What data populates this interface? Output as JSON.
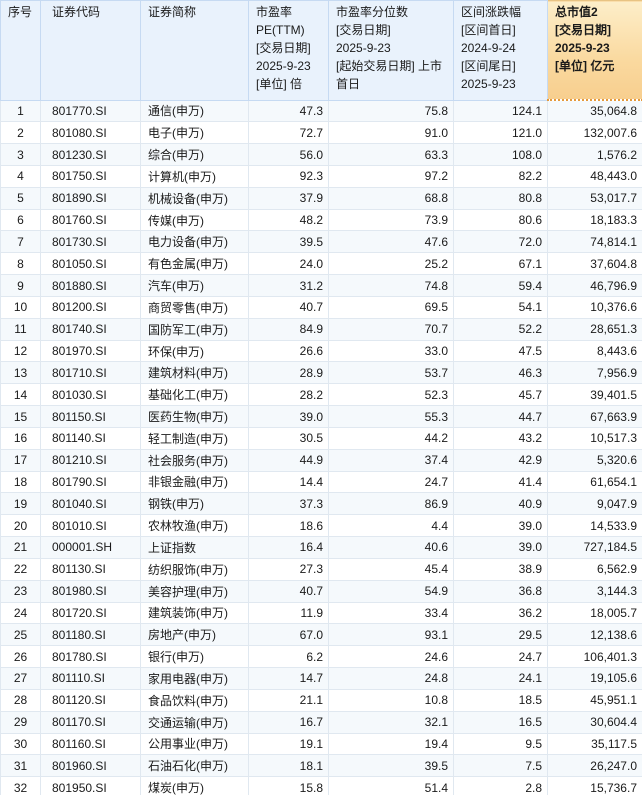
{
  "colors": {
    "header_bg": "#E9F2FC",
    "header_border": "#C6DAF2",
    "highlight_header_top": "#FDEEC9",
    "highlight_header_bottom": "#F7CE8E",
    "highlight_header_dotted_border": "#E59A3C",
    "body_band": "#F5F9FC",
    "body_border": "#E0E8F0"
  },
  "table": {
    "columns": [
      {
        "id": "index",
        "label": "序号",
        "highlight": false
      },
      {
        "id": "code",
        "label": "证券代码",
        "highlight": false
      },
      {
        "id": "name",
        "label": "证券简称",
        "highlight": false
      },
      {
        "id": "pe",
        "label": "市盈率\nPE(TTM)\n[交易日期]\n2025-9-23\n[单位] 倍",
        "highlight": false
      },
      {
        "id": "pe-percentile",
        "label": "市盈率分位数\n[交易日期]\n2025-9-23\n[起始交易日期] 上市\n首日",
        "highlight": false
      },
      {
        "id": "range-change",
        "label": "区间涨跌幅\n[区间首日]\n2024-9-24\n[区间尾日]\n2025-9-23",
        "highlight": false
      },
      {
        "id": "market-cap",
        "label": "总市值2\n[交易日期]\n2025-9-23\n[单位] 亿元",
        "highlight": true
      }
    ],
    "rows": [
      [
        "1",
        "801770.SI",
        "通信(申万)",
        "47.3",
        "75.8",
        "124.1",
        "35,064.8"
      ],
      [
        "2",
        "801080.SI",
        "电子(申万)",
        "72.7",
        "91.0",
        "121.0",
        "132,007.6"
      ],
      [
        "3",
        "801230.SI",
        "综合(申万)",
        "56.0",
        "63.3",
        "108.0",
        "1,576.2"
      ],
      [
        "4",
        "801750.SI",
        "计算机(申万)",
        "92.3",
        "97.2",
        "82.2",
        "48,443.0"
      ],
      [
        "5",
        "801890.SI",
        "机械设备(申万)",
        "37.9",
        "68.8",
        "80.8",
        "53,017.7"
      ],
      [
        "6",
        "801760.SI",
        "传媒(申万)",
        "48.2",
        "73.9",
        "80.6",
        "18,183.3"
      ],
      [
        "7",
        "801730.SI",
        "电力设备(申万)",
        "39.5",
        "47.6",
        "72.0",
        "74,814.1"
      ],
      [
        "8",
        "801050.SI",
        "有色金属(申万)",
        "24.0",
        "25.2",
        "67.1",
        "37,604.8"
      ],
      [
        "9",
        "801880.SI",
        "汽车(申万)",
        "31.2",
        "74.8",
        "59.4",
        "46,796.9"
      ],
      [
        "10",
        "801200.SI",
        "商贸零售(申万)",
        "40.7",
        "69.5",
        "54.1",
        "10,376.6"
      ],
      [
        "11",
        "801740.SI",
        "国防军工(申万)",
        "84.9",
        "70.7",
        "52.2",
        "28,651.3"
      ],
      [
        "12",
        "801970.SI",
        "环保(申万)",
        "26.6",
        "33.0",
        "47.5",
        "8,443.6"
      ],
      [
        "13",
        "801710.SI",
        "建筑材料(申万)",
        "28.9",
        "53.7",
        "46.3",
        "7,956.9"
      ],
      [
        "14",
        "801030.SI",
        "基础化工(申万)",
        "28.2",
        "52.3",
        "45.7",
        "39,401.5"
      ],
      [
        "15",
        "801150.SI",
        "医药生物(申万)",
        "39.0",
        "55.3",
        "44.7",
        "67,663.9"
      ],
      [
        "16",
        "801140.SI",
        "轻工制造(申万)",
        "30.5",
        "44.2",
        "43.2",
        "10,517.3"
      ],
      [
        "17",
        "801210.SI",
        "社会服务(申万)",
        "44.9",
        "37.4",
        "42.9",
        "5,320.6"
      ],
      [
        "18",
        "801790.SI",
        "非银金融(申万)",
        "14.4",
        "24.7",
        "41.4",
        "61,654.1"
      ],
      [
        "19",
        "801040.SI",
        "钢铁(申万)",
        "37.3",
        "86.9",
        "40.9",
        "9,047.9"
      ],
      [
        "20",
        "801010.SI",
        "农林牧渔(申万)",
        "18.6",
        "4.4",
        "39.0",
        "14,533.9"
      ],
      [
        "21",
        "000001.SH",
        "上证指数",
        "16.4",
        "40.6",
        "39.0",
        "727,184.5"
      ],
      [
        "22",
        "801130.SI",
        "纺织服饰(申万)",
        "27.3",
        "45.4",
        "38.9",
        "6,562.9"
      ],
      [
        "23",
        "801980.SI",
        "美容护理(申万)",
        "40.7",
        "54.9",
        "36.8",
        "3,144.3"
      ],
      [
        "24",
        "801720.SI",
        "建筑装饰(申万)",
        "11.9",
        "33.4",
        "36.2",
        "18,005.7"
      ],
      [
        "25",
        "801180.SI",
        "房地产(申万)",
        "67.0",
        "93.1",
        "29.5",
        "12,138.6"
      ],
      [
        "26",
        "801780.SI",
        "银行(申万)",
        "6.2",
        "24.6",
        "24.7",
        "106,401.3"
      ],
      [
        "27",
        "801110.SI",
        "家用电器(申万)",
        "14.7",
        "24.8",
        "24.1",
        "19,105.6"
      ],
      [
        "28",
        "801120.SI",
        "食品饮料(申万)",
        "21.1",
        "10.8",
        "18.5",
        "45,951.1"
      ],
      [
        "29",
        "801170.SI",
        "交通运输(申万)",
        "16.7",
        "32.1",
        "16.5",
        "30,604.4"
      ],
      [
        "30",
        "801160.SI",
        "公用事业(申万)",
        "19.1",
        "19.4",
        "9.5",
        "35,117.5"
      ],
      [
        "31",
        "801960.SI",
        "石油石化(申万)",
        "18.1",
        "39.5",
        "7.5",
        "26,247.0"
      ],
      [
        "32",
        "801950.SI",
        "煤炭(申万)",
        "15.8",
        "51.4",
        "2.8",
        "15,736.7"
      ]
    ]
  }
}
